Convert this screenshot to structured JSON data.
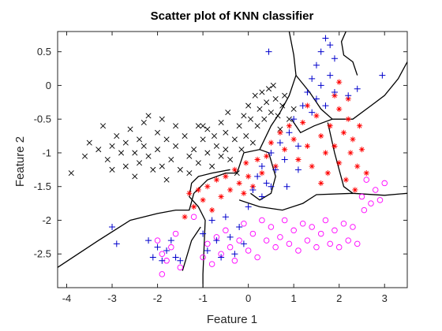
{
  "chart_data": {
    "type": "scatter",
    "title": "Scatter plot of KNN classifier",
    "xlabel": "Feature 1",
    "ylabel": "Feature 2",
    "xlim": [
      -4.2,
      3.5
    ],
    "ylim": [
      -3.0,
      0.8
    ],
    "xticks": [
      -4,
      -3,
      -2,
      -1,
      0,
      1,
      2,
      3
    ],
    "yticks": [
      -2.5,
      -2,
      -1.5,
      -1,
      -0.5,
      0,
      0.5
    ],
    "grid": false,
    "legend": "none",
    "series": [
      {
        "marker": "x",
        "color": "#000000",
        "points": [
          [
            -3.9,
            -1.3
          ],
          [
            -3.6,
            -1.05
          ],
          [
            -3.5,
            -0.85
          ],
          [
            -3.3,
            -0.95
          ],
          [
            -3.2,
            -0.6
          ],
          [
            -3.1,
            -1.1
          ],
          [
            -3.0,
            -0.9
          ],
          [
            -3.0,
            -1.25
          ],
          [
            -2.9,
            -0.75
          ],
          [
            -2.8,
            -1.0
          ],
          [
            -2.7,
            -0.85
          ],
          [
            -2.7,
            -1.2
          ],
          [
            -2.6,
            -0.65
          ],
          [
            -2.5,
            -1.0
          ],
          [
            -2.5,
            -1.35
          ],
          [
            -2.4,
            -0.8
          ],
          [
            -2.4,
            -1.15
          ],
          [
            -2.3,
            -0.55
          ],
          [
            -2.3,
            -0.9
          ],
          [
            -2.2,
            -0.45
          ],
          [
            -2.2,
            -1.05
          ],
          [
            -2.1,
            -1.25
          ],
          [
            -2.0,
            -0.7
          ],
          [
            -2.0,
            -0.95
          ],
          [
            -1.9,
            -0.5
          ],
          [
            -1.9,
            -1.2
          ],
          [
            -1.8,
            -0.8
          ],
          [
            -1.8,
            -1.4
          ],
          [
            -1.7,
            -1.1
          ],
          [
            -1.6,
            -0.6
          ],
          [
            -1.6,
            -0.9
          ],
          [
            -1.5,
            -1.25
          ],
          [
            -1.4,
            -0.75
          ],
          [
            -1.3,
            -1.05
          ],
          [
            -1.3,
            -1.3
          ],
          [
            -1.2,
            -0.95
          ],
          [
            -1.1,
            -0.6
          ],
          [
            -1.1,
            -1.15
          ],
          [
            -1.0,
            -0.8
          ],
          [
            -1.0,
            -0.6
          ],
          [
            -0.9,
            -1.0
          ],
          [
            -0.9,
            -0.65
          ],
          [
            -0.8,
            -1.2
          ],
          [
            -0.75,
            -0.75
          ],
          [
            -0.7,
            -0.9
          ],
          [
            -0.6,
            -0.55
          ],
          [
            -0.6,
            -1.05
          ],
          [
            -0.5,
            -0.7
          ],
          [
            -0.5,
            -0.95
          ],
          [
            -0.45,
            -0.4
          ],
          [
            -0.4,
            -1.1
          ],
          [
            -0.3,
            -0.8
          ],
          [
            -0.25,
            -1.3
          ],
          [
            -0.2,
            -0.6
          ],
          [
            -0.15,
            -0.95
          ],
          [
            -0.1,
            -0.45
          ],
          [
            -0.05,
            -0.75
          ],
          [
            0.0,
            -0.3
          ],
          [
            0.05,
            -0.5
          ],
          [
            0.1,
            -0.85
          ],
          [
            0.15,
            -0.15
          ],
          [
            0.2,
            -0.6
          ],
          [
            0.25,
            -0.35
          ],
          [
            0.3,
            -0.1
          ],
          [
            0.35,
            -0.5
          ],
          [
            0.4,
            -0.25
          ],
          [
            0.45,
            -0.05
          ],
          [
            0.5,
            -0.4
          ],
          [
            0.55,
            0.0
          ],
          [
            0.6,
            -0.2
          ],
          [
            0.65,
            -0.45
          ],
          [
            0.7,
            -0.65
          ],
          [
            0.75,
            -0.3
          ],
          [
            0.8,
            -0.15
          ],
          [
            0.9,
            -0.5
          ],
          [
            1.0,
            -0.35
          ]
        ]
      },
      {
        "marker": "*",
        "color": "#ff0000",
        "points": [
          [
            -1.4,
            -1.95
          ],
          [
            -1.3,
            -1.6
          ],
          [
            -1.2,
            -1.8
          ],
          [
            -1.1,
            -1.55
          ],
          [
            -1.0,
            -1.7
          ],
          [
            -0.9,
            -1.5
          ],
          [
            -0.8,
            -1.85
          ],
          [
            -0.7,
            -1.4
          ],
          [
            -0.6,
            -1.65
          ],
          [
            -0.5,
            -1.35
          ],
          [
            -0.4,
            -1.55
          ],
          [
            -0.3,
            -1.25
          ],
          [
            -0.2,
            -1.45
          ],
          [
            -0.1,
            -1.6
          ],
          [
            -0.05,
            -1.15
          ],
          [
            0.0,
            -1.35
          ],
          [
            0.1,
            -1.5
          ],
          [
            0.2,
            -1.1
          ],
          [
            0.3,
            -1.3
          ],
          [
            0.4,
            -1.05
          ],
          [
            0.5,
            -0.85
          ],
          [
            0.6,
            -1.2
          ],
          [
            0.7,
            -0.7
          ],
          [
            0.8,
            -0.95
          ],
          [
            0.9,
            -0.6
          ],
          [
            1.0,
            -0.8
          ],
          [
            1.1,
            -1.1
          ],
          [
            1.2,
            -0.55
          ],
          [
            1.3,
            -0.9
          ],
          [
            1.4,
            -1.2
          ],
          [
            1.5,
            -0.45
          ],
          [
            1.6,
            -0.75
          ],
          [
            1.7,
            -1.0
          ],
          [
            1.75,
            -1.3
          ],
          [
            1.8,
            -0.6
          ],
          [
            1.9,
            -0.9
          ],
          [
            2.0,
            -1.15
          ],
          [
            2.0,
            -0.35
          ],
          [
            2.1,
            -0.7
          ],
          [
            2.15,
            -1.4
          ],
          [
            2.2,
            -0.5
          ],
          [
            2.25,
            -1.0
          ],
          [
            2.3,
            -0.8
          ],
          [
            2.4,
            -1.2
          ],
          [
            2.45,
            -0.6
          ],
          [
            2.5,
            -0.95
          ],
          [
            2.6,
            -1.3
          ],
          [
            2.2,
            -0.2
          ],
          [
            1.9,
            -0.15
          ],
          [
            2.0,
            0.05
          ],
          [
            1.6,
            -1.45
          ],
          [
            1.3,
            -0.3
          ],
          [
            2.35,
            -1.55
          ]
        ]
      },
      {
        "marker": "o",
        "color": "#ff00ff",
        "points": [
          [
            -2.0,
            -2.3
          ],
          [
            -1.9,
            -2.5
          ],
          [
            -1.8,
            -2.6
          ],
          [
            -1.7,
            -2.4
          ],
          [
            -1.9,
            -2.8
          ],
          [
            -1.6,
            -2.2
          ],
          [
            -1.5,
            -2.7
          ],
          [
            -1.2,
            -1.95
          ],
          [
            -1.0,
            -2.55
          ],
          [
            -0.9,
            -2.35
          ],
          [
            -0.8,
            -2.65
          ],
          [
            -0.7,
            -2.25
          ],
          [
            -0.6,
            -2.5
          ],
          [
            -0.5,
            -2.15
          ],
          [
            -0.4,
            -2.4
          ],
          [
            -0.3,
            -2.6
          ],
          [
            -0.2,
            -2.3
          ],
          [
            -0.1,
            -2.05
          ],
          [
            0.0,
            -2.45
          ],
          [
            0.1,
            -2.2
          ],
          [
            0.2,
            -2.55
          ],
          [
            0.3,
            -2.0
          ],
          [
            0.4,
            -2.3
          ],
          [
            0.5,
            -2.1
          ],
          [
            0.6,
            -2.4
          ],
          [
            0.7,
            -2.25
          ],
          [
            0.8,
            -2.0
          ],
          [
            0.9,
            -2.35
          ],
          [
            1.0,
            -2.15
          ],
          [
            1.1,
            -2.45
          ],
          [
            1.2,
            -2.05
          ],
          [
            1.3,
            -2.3
          ],
          [
            1.4,
            -2.1
          ],
          [
            1.5,
            -2.4
          ],
          [
            1.6,
            -2.2
          ],
          [
            1.7,
            -2.0
          ],
          [
            1.8,
            -2.35
          ],
          [
            1.9,
            -2.15
          ],
          [
            2.0,
            -2.4
          ],
          [
            2.1,
            -2.05
          ],
          [
            2.2,
            -2.3
          ],
          [
            2.3,
            -2.1
          ],
          [
            2.4,
            -2.35
          ],
          [
            2.5,
            -1.65
          ],
          [
            2.6,
            -1.4
          ],
          [
            2.7,
            -1.75
          ],
          [
            2.8,
            -1.55
          ],
          [
            2.9,
            -1.7
          ],
          [
            3.0,
            -1.45
          ],
          [
            2.55,
            -1.85
          ]
        ]
      },
      {
        "marker": "+",
        "color": "#0000cc",
        "points": [
          [
            -3.0,
            -2.1
          ],
          [
            -2.9,
            -2.35
          ],
          [
            -2.2,
            -2.3
          ],
          [
            -2.1,
            -2.55
          ],
          [
            -2.0,
            -2.4
          ],
          [
            -1.9,
            -2.6
          ],
          [
            -1.8,
            -2.45
          ],
          [
            -1.7,
            -2.3
          ],
          [
            -1.6,
            -2.55
          ],
          [
            -1.5,
            -2.6
          ],
          [
            -1.0,
            -2.2
          ],
          [
            -0.9,
            -2.45
          ],
          [
            -0.8,
            -2.0
          ],
          [
            -0.7,
            -2.3
          ],
          [
            -0.6,
            -2.55
          ],
          [
            -0.5,
            -1.95
          ],
          [
            -0.4,
            -2.25
          ],
          [
            -0.3,
            -2.5
          ],
          [
            -0.2,
            -2.1
          ],
          [
            -0.1,
            -2.35
          ],
          [
            0.0,
            -1.8
          ],
          [
            0.1,
            -1.55
          ],
          [
            0.2,
            -1.35
          ],
          [
            0.3,
            -1.2
          ],
          [
            0.4,
            -1.45
          ],
          [
            0.5,
            -1.0
          ],
          [
            0.6,
            -1.25
          ],
          [
            0.7,
            -0.85
          ],
          [
            0.8,
            -1.1
          ],
          [
            0.9,
            -0.7
          ],
          [
            1.0,
            -0.5
          ],
          [
            1.1,
            -0.9
          ],
          [
            1.2,
            -0.3
          ],
          [
            1.3,
            -0.1
          ],
          [
            1.4,
            0.1
          ],
          [
            1.5,
            0.3
          ],
          [
            1.6,
            0.5
          ],
          [
            1.7,
            0.7
          ],
          [
            1.8,
            0.6
          ],
          [
            1.9,
            0.4
          ],
          [
            1.5,
            -0.2
          ],
          [
            1.6,
            0.0
          ],
          [
            1.7,
            -0.3
          ],
          [
            1.8,
            0.15
          ],
          [
            1.9,
            -0.1
          ],
          [
            1.4,
            -0.4
          ],
          [
            0.3,
            -1.65
          ],
          [
            0.5,
            -1.5
          ],
          [
            2.95,
            0.15
          ],
          [
            2.2,
            -0.15
          ],
          [
            2.4,
            -0.05
          ],
          [
            0.45,
            0.5
          ],
          [
            1.1,
            -1.25
          ],
          [
            0.85,
            -1.5
          ]
        ]
      }
    ],
    "decision_boundaries": [
      [
        [
          -4.2,
          -2.7
        ],
        [
          -3.3,
          -2.3
        ],
        [
          -2.6,
          -2.0
        ],
        [
          -2.0,
          -1.9
        ],
        [
          -1.6,
          -1.85
        ],
        [
          -1.3,
          -1.85
        ],
        [
          -1.2,
          -1.6
        ],
        [
          -0.9,
          -1.4
        ],
        [
          -0.5,
          -1.3
        ],
        [
          -0.25,
          -1.3
        ],
        [
          -0.1,
          -1.0
        ],
        [
          0.25,
          -0.95
        ],
        [
          0.5,
          -0.6
        ],
        [
          0.7,
          -0.4
        ],
        [
          0.9,
          -0.15
        ],
        [
          1.05,
          0.15
        ],
        [
          1.0,
          0.45
        ],
        [
          0.9,
          0.8
        ]
      ],
      [
        [
          0.25,
          -0.95
        ],
        [
          0.45,
          -1.0
        ],
        [
          0.6,
          -1.35
        ],
        [
          0.5,
          -1.6
        ],
        [
          0.25,
          -1.7
        ],
        [
          0.05,
          -1.6
        ]
      ],
      [
        [
          -1.0,
          -3.0
        ],
        [
          -1.0,
          -2.8
        ],
        [
          -0.95,
          -2.0
        ],
        [
          -1.1,
          -1.8
        ],
        [
          -1.3,
          -1.65
        ],
        [
          -1.25,
          -1.45
        ],
        [
          -1.1,
          -1.35
        ],
        [
          -0.8,
          -1.3
        ],
        [
          -0.4,
          -1.25
        ]
      ],
      [
        [
          -1.45,
          -2.75
        ],
        [
          -1.25,
          -2.3
        ],
        [
          -1.05,
          -2.1
        ]
      ],
      [
        [
          0.95,
          -0.5
        ],
        [
          1.15,
          -0.7
        ],
        [
          1.45,
          -0.6
        ],
        [
          1.85,
          -0.5
        ],
        [
          2.3,
          -0.5
        ],
        [
          2.7,
          -0.3
        ],
        [
          3.0,
          -0.15
        ],
        [
          3.3,
          0.1
        ],
        [
          3.5,
          0.35
        ]
      ],
      [
        [
          -0.2,
          -1.7
        ],
        [
          0.25,
          -1.8
        ],
        [
          0.75,
          -1.85
        ],
        [
          1.2,
          -1.75
        ],
        [
          1.5,
          -1.62
        ],
        [
          2.3,
          -1.6
        ],
        [
          3.0,
          -1.63
        ],
        [
          3.5,
          -1.6
        ]
      ],
      [
        [
          1.05,
          0.15
        ],
        [
          1.35,
          -0.1
        ],
        [
          1.6,
          -0.35
        ],
        [
          1.85,
          -0.5
        ]
      ],
      [
        [
          2.15,
          0.8
        ],
        [
          2.05,
          0.65
        ],
        [
          2.1,
          0.45
        ],
        [
          2.3,
          0.35
        ],
        [
          2.4,
          0.15
        ]
      ],
      [
        [
          1.75,
          -0.55
        ],
        [
          1.9,
          -1.0
        ],
        [
          2.1,
          -1.5
        ],
        [
          2.3,
          -1.6
        ]
      ]
    ]
  }
}
